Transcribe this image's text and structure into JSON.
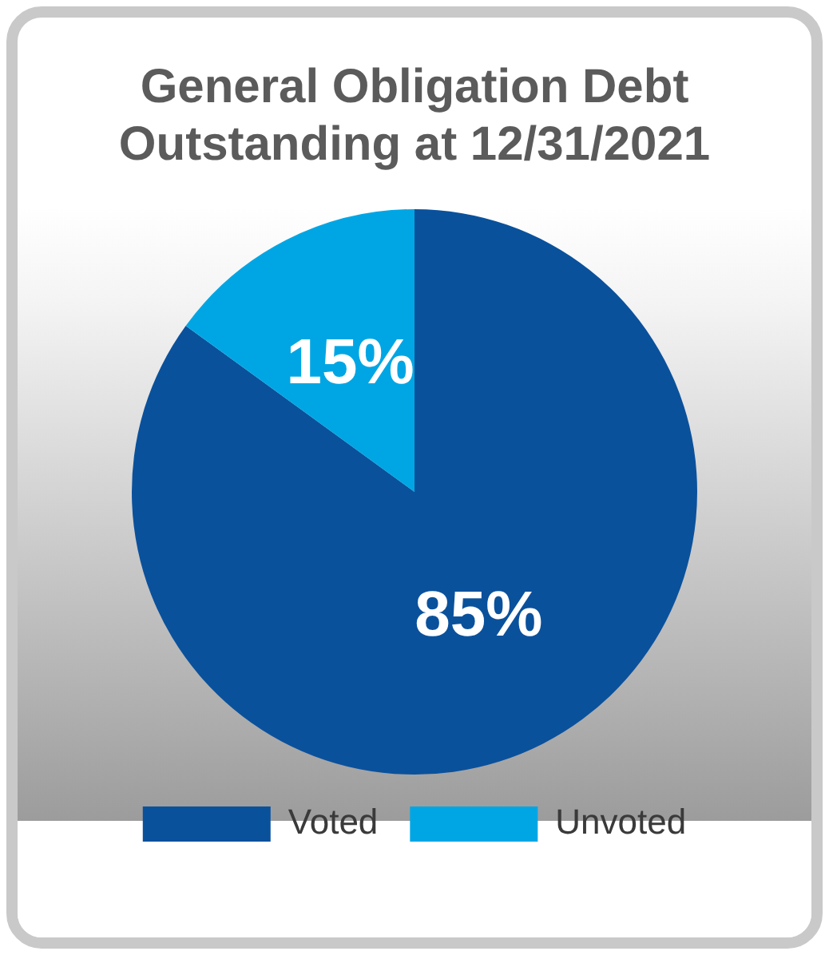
{
  "chart_data": {
    "type": "pie",
    "title": "General Obligation Debt Outstanding at 12/31/2021",
    "categories": [
      "Voted",
      "Unvoted"
    ],
    "values": [
      85,
      15
    ],
    "colors": [
      "#0a519c",
      "#00a6e4"
    ],
    "value_labels": [
      "85%",
      "15%"
    ],
    "legend": "bottom"
  }
}
